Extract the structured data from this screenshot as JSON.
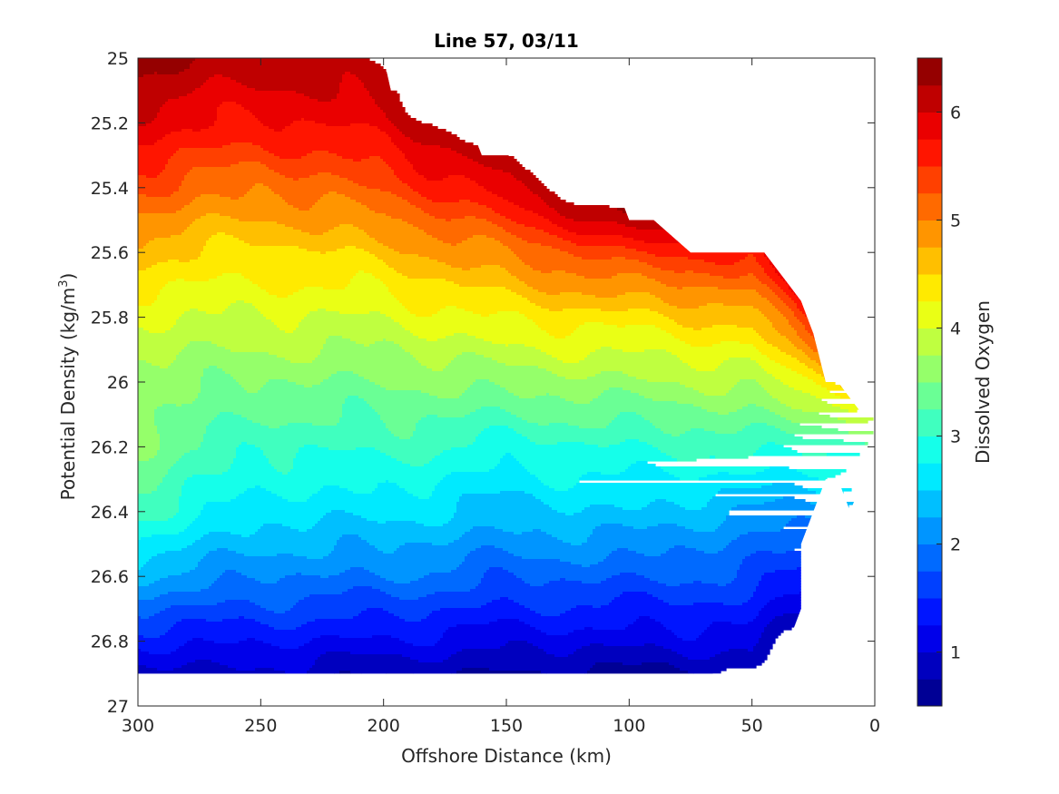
{
  "chart_data": {
    "type": "filled-contour",
    "title": "Line 57, 03/11",
    "xlabel": "Offshore Distance (km)",
    "ylabel": "Potential Density (kg/m",
    "ylabel_superscript": "3",
    "ylabel_suffix": ")",
    "x_reversed": true,
    "y_reversed": true,
    "xlim": [
      0,
      300
    ],
    "ylim": [
      25,
      27
    ],
    "xticks": [
      300,
      250,
      200,
      150,
      100,
      50,
      0
    ],
    "xtick_labels": [
      "300",
      "250",
      "200",
      "150",
      "100",
      "50",
      "0"
    ],
    "yticks": [
      25,
      25.2,
      25.4,
      25.6,
      25.8,
      26,
      26.2,
      26.4,
      26.6,
      26.8,
      27
    ],
    "ytick_labels": [
      "25",
      "25.2",
      "25.4",
      "25.6",
      "25.8",
      "26",
      "26.2",
      "26.4",
      "26.6",
      "26.8",
      "27"
    ],
    "colorbar": {
      "label": "Dissolved Oxygen",
      "range": [
        0.5,
        6.5
      ],
      "ticks": [
        1,
        2,
        3,
        4,
        5,
        6
      ],
      "tick_labels": [
        "1",
        "2",
        "3",
        "4",
        "5",
        "6"
      ],
      "level_step": 0.25,
      "colormap": "jet"
    },
    "upper_boundary": {
      "x": [
        300,
        200,
        197,
        180,
        175,
        165,
        160,
        130,
        120,
        105,
        100,
        90,
        75,
        70,
        45,
        40,
        35,
        30,
        25,
        20,
        15,
        10,
        5,
        0
      ],
      "y": [
        25.0,
        25.0,
        25.1,
        25.1,
        25.2,
        25.2,
        25.3,
        25.3,
        25.4,
        25.4,
        25.5,
        25.5,
        25.6,
        25.6,
        25.6,
        25.65,
        25.7,
        25.75,
        25.85,
        26.0,
        26.0,
        26.05,
        26.1,
        26.1
      ]
    },
    "lower_boundary": {
      "x": [
        300,
        35,
        35,
        30,
        30,
        30,
        25,
        20,
        15,
        10,
        5,
        0
      ],
      "y": [
        26.9,
        26.9,
        26.8,
        26.7,
        26.6,
        26.5,
        26.4,
        26.3,
        26.3,
        26.4,
        26.3,
        26.2
      ]
    },
    "dissolved_oxygen_profiles": [
      {
        "x": 300,
        "density": [
          25.0,
          25.2,
          25.4,
          25.6,
          25.8,
          26.0,
          26.2,
          26.4,
          26.6,
          26.8,
          26.9
        ],
        "oxygen": [
          6.4,
          5.9,
          5.3,
          4.6,
          4.0,
          3.6,
          3.5,
          3.1,
          2.3,
          1.3,
          0.9
        ]
      },
      {
        "x": 250,
        "density": [
          25.0,
          25.2,
          25.4,
          25.6,
          25.8,
          26.0,
          26.2,
          26.4,
          26.6,
          26.8,
          26.9
        ],
        "oxygen": [
          6.1,
          5.7,
          5.0,
          4.4,
          4.0,
          3.5,
          3.0,
          2.6,
          2.0,
          1.3,
          0.9
        ]
      },
      {
        "x": 200,
        "density": [
          25.0,
          25.2,
          25.4,
          25.6,
          25.8,
          26.0,
          26.2,
          26.4,
          26.6,
          26.8,
          26.9
        ],
        "oxygen": [
          6.3,
          5.9,
          5.3,
          4.6,
          4.0,
          3.5,
          3.1,
          2.6,
          2.0,
          1.2,
          0.8
        ]
      },
      {
        "x": 150,
        "density": [
          25.3,
          25.4,
          25.6,
          25.8,
          26.0,
          26.2,
          26.4,
          26.6,
          26.8,
          26.9
        ],
        "oxygen": [
          6.3,
          5.9,
          5.0,
          4.3,
          3.6,
          2.9,
          2.4,
          1.8,
          1.1,
          0.7
        ]
      },
      {
        "x": 100,
        "density": [
          25.5,
          25.6,
          25.8,
          26.0,
          26.2,
          26.4,
          26.6,
          26.8,
          26.9
        ],
        "oxygen": [
          6.2,
          5.5,
          4.4,
          3.7,
          3.0,
          2.5,
          1.8,
          1.1,
          0.7
        ]
      },
      {
        "x": 50,
        "density": [
          25.6,
          25.8,
          26.0,
          26.2,
          26.4,
          26.6,
          26.8,
          26.9
        ],
        "oxygen": [
          5.6,
          4.6,
          3.8,
          3.1,
          2.2,
          1.7,
          1.1,
          0.7
        ]
      },
      {
        "x": 10,
        "density": [
          26.0,
          26.1,
          26.2,
          26.3
        ],
        "oxygen": [
          4.6,
          3.8,
          3.1,
          2.6
        ]
      }
    ]
  }
}
